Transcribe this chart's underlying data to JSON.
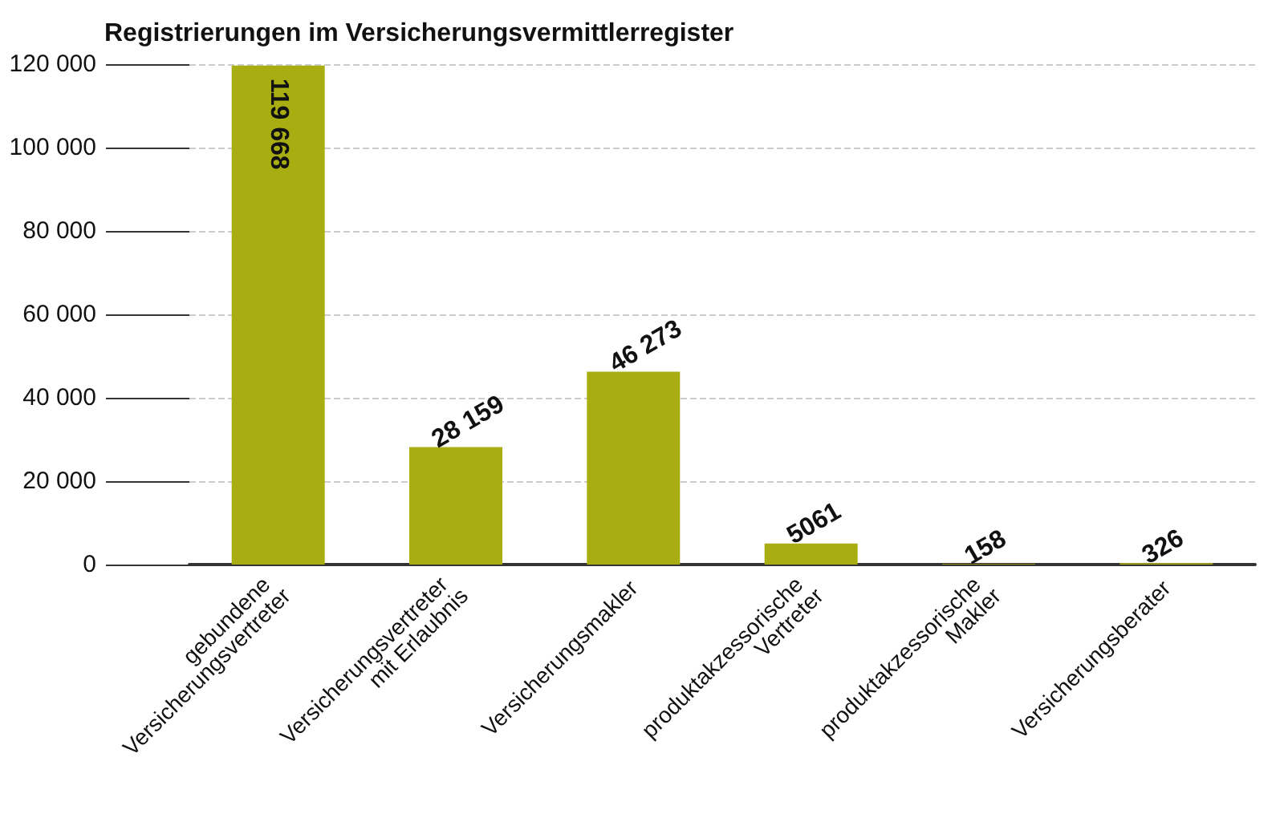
{
  "chart_data": {
    "type": "bar",
    "title": "Registrierungen im Versicherungsvermittlerregister",
    "categories": [
      "gebundene Versicherungsvertreter",
      "Versicherungsvertreter mit Erlaubnis",
      "Versicherungsmakler",
      "produktakzessorische Vertreter",
      "produktakzessorische Makler",
      "Versicherungsberater"
    ],
    "values": [
      119668,
      28159,
      46273,
      5061,
      158,
      326
    ],
    "value_labels": [
      "119 668",
      "28 159",
      "46 273",
      "5061",
      "158",
      "326"
    ],
    "color": "#a8ad12",
    "ylim": [
      0,
      120000
    ],
    "yticks": [
      0,
      {
        "value": 20000,
        "label": "20 000"
      },
      {
        "value": 40000,
        "label": "40 000"
      },
      {
        "value": 60000,
        "label": "60 000"
      },
      {
        "value": 80000,
        "label": "80 000"
      },
      {
        "value": 100000,
        "label": "100 000"
      },
      {
        "value": 120000,
        "label": "120 000"
      }
    ],
    "grid": "y"
  }
}
